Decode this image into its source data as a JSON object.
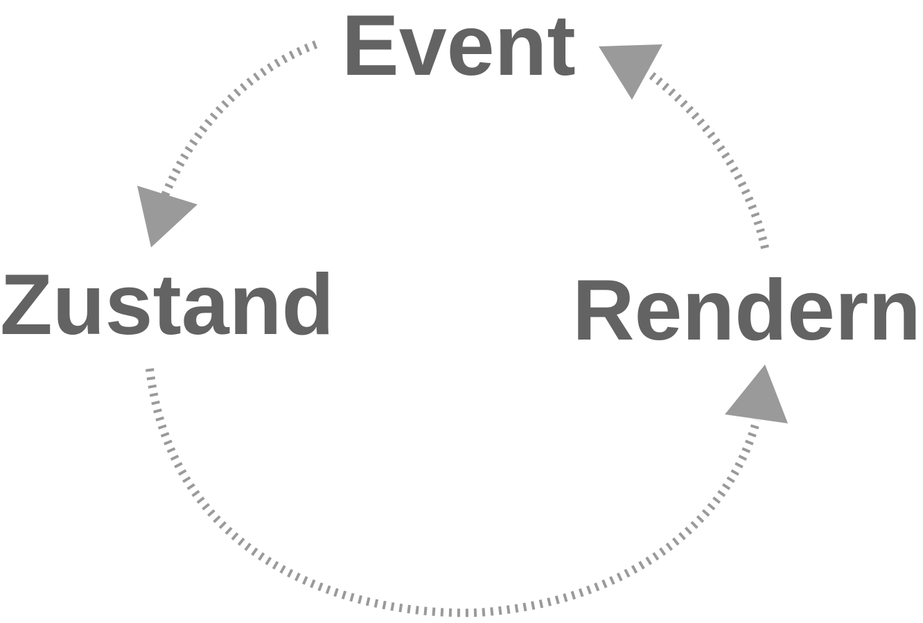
{
  "diagram": {
    "type": "cycle",
    "nodes": {
      "event": "Event",
      "zustand": "Zustand",
      "rendern": "Rendern"
    },
    "edges": [
      {
        "from": "Event",
        "to": "Zustand"
      },
      {
        "from": "Zustand",
        "to": "Rendern"
      },
      {
        "from": "Rendern",
        "to": "Event"
      }
    ],
    "colors": {
      "label": "#636363",
      "arrow": "#9a9a9a",
      "background": "#ffffff"
    }
  }
}
